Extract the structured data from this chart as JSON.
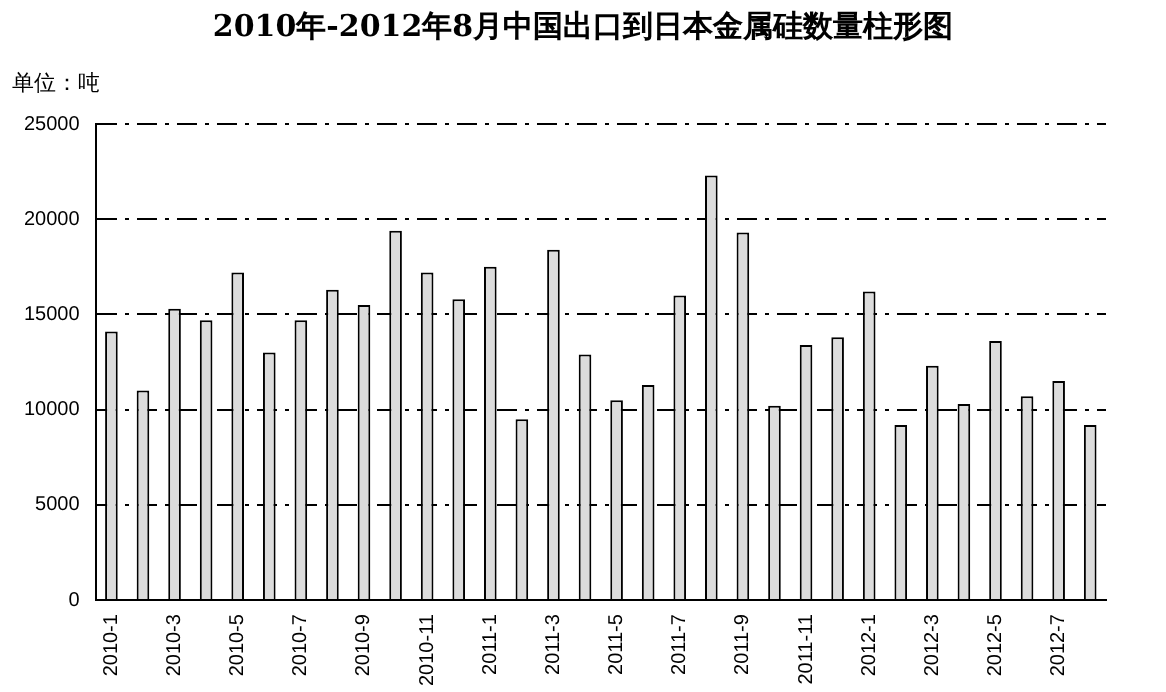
{
  "chart_data": {
    "type": "bar",
    "title": "2010年-2012年8月中国出口到日本金属硅数量柱形图",
    "annotations": [
      "单位：吨"
    ],
    "categories": [
      "2010-1",
      null,
      "2010-3",
      null,
      "2010-5",
      null,
      "2010-7",
      null,
      "2010-9",
      null,
      "2010-11",
      null,
      "2011-1",
      null,
      "2011-3",
      null,
      "2011-5",
      null,
      "2011-7",
      null,
      "2011-9",
      null,
      "2011-11",
      null,
      "2012-1",
      null,
      "2012-3",
      null,
      "2012-5",
      null,
      "2012-7",
      null
    ],
    "values": [
      14100,
      11000,
      15300,
      14700,
      17200,
      13000,
      14700,
      16300,
      15500,
      19400,
      17200,
      15800,
      17500,
      9500,
      18400,
      12900,
      10500,
      11300,
      16000,
      22300,
      19300,
      10200,
      13400,
      13800,
      16200,
      9200,
      12300,
      10300,
      13600,
      10700,
      11500,
      9200
    ],
    "color": "#dcdcdc",
    "ylim": [
      0,
      25000
    ],
    "yticks": [
      0,
      5000,
      10000,
      15000,
      20000,
      25000
    ],
    "grid": "y",
    "legend": false
  }
}
